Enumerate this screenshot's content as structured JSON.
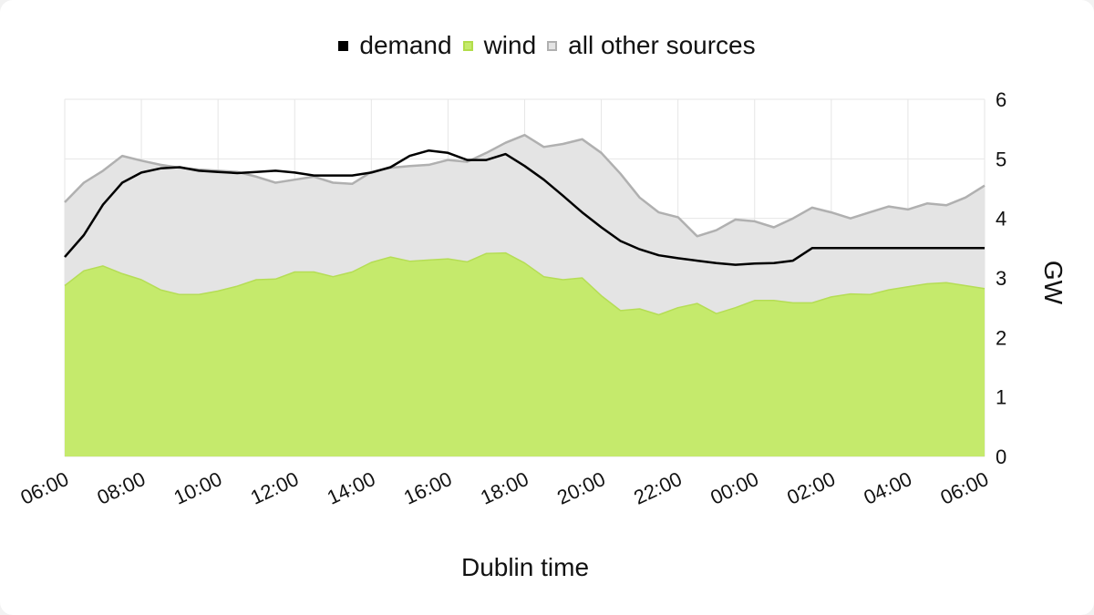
{
  "chart_data": {
    "type": "area",
    "legend_placement": "top",
    "legend": [
      {
        "label": "demand",
        "color": "#000000"
      },
      {
        "label": "wind",
        "color": "#c5ea6c"
      },
      {
        "label": "all other sources",
        "color": "#cccccc"
      }
    ],
    "xlabel": "Dublin time",
    "ylabel": "GW",
    "ylim": [
      0,
      6
    ],
    "y_ticks": [
      "0",
      "1",
      "2",
      "3",
      "4",
      "5",
      "6"
    ],
    "x_ticks": [
      "06:00",
      "08:00",
      "10:00",
      "12:00",
      "14:00",
      "16:00",
      "18:00",
      "20:00",
      "22:00",
      "00:00",
      "02:00",
      "04:00",
      "06:00"
    ],
    "x_unit": "hours from 06:00",
    "xlim": [
      0,
      24
    ],
    "grid": true,
    "colors": {
      "demand_line": "#000000",
      "wind_fill": "#c5ea6c",
      "other_fill": "#e4e4e4",
      "other_line": "#b0b0b0",
      "grid": "#e6e6e6"
    },
    "series": [
      {
        "name": "wind",
        "x": [
          0,
          0.5,
          1,
          1.5,
          2,
          2.5,
          3,
          3.5,
          4,
          4.5,
          5,
          5.5,
          6,
          6.5,
          7,
          7.5,
          8,
          8.5,
          9,
          9.5,
          10,
          10.5,
          11,
          11.5,
          12,
          12.5,
          13,
          13.5,
          14,
          14.5,
          15,
          15.5,
          16,
          16.5,
          17,
          17.5,
          18,
          18.5,
          19,
          19.5,
          20,
          20.5,
          21,
          21.5,
          22,
          22.5,
          23,
          23.5,
          24
        ],
        "values": [
          2.87,
          3.12,
          3.2,
          3.07,
          2.97,
          2.8,
          2.72,
          2.72,
          2.78,
          2.86,
          2.97,
          2.98,
          3.1,
          3.1,
          3.02,
          3.1,
          3.26,
          3.35,
          3.28,
          3.3,
          3.32,
          3.27,
          3.41,
          3.42,
          3.25,
          3.02,
          2.97,
          3.0,
          2.7,
          2.45,
          2.48,
          2.38,
          2.5,
          2.57,
          2.4,
          2.5,
          2.62,
          2.62,
          2.58,
          2.58,
          2.68,
          2.73,
          2.72,
          2.8,
          2.85,
          2.9,
          2.92,
          2.87,
          2.82
        ]
      },
      {
        "name": "all other sources",
        "x": [
          0,
          0.5,
          1,
          1.5,
          2,
          2.5,
          3,
          3.5,
          4,
          4.5,
          5,
          5.5,
          6,
          6.5,
          7,
          7.5,
          8,
          8.5,
          9,
          9.5,
          10,
          10.5,
          11,
          11.5,
          12,
          12.5,
          13,
          13.5,
          14,
          14.5,
          15,
          15.5,
          16,
          16.5,
          17,
          17.5,
          18,
          18.5,
          19,
          19.5,
          20,
          20.5,
          21,
          21.5,
          22,
          22.5,
          23,
          23.5,
          24
        ],
        "values": [
          4.27,
          4.6,
          4.8,
          5.05,
          4.97,
          4.9,
          4.85,
          4.82,
          4.8,
          4.78,
          4.7,
          4.6,
          4.65,
          4.7,
          4.6,
          4.58,
          4.78,
          4.85,
          4.88,
          4.9,
          4.98,
          4.95,
          5.1,
          5.27,
          5.4,
          5.2,
          5.25,
          5.33,
          5.1,
          4.75,
          4.35,
          4.1,
          4.02,
          3.7,
          3.8,
          3.98,
          3.95,
          3.85,
          4.0,
          4.18,
          4.1,
          4.0,
          4.1,
          4.2,
          4.15,
          4.25,
          4.22,
          4.35,
          4.55
        ]
      },
      {
        "name": "demand",
        "x": [
          0,
          0.5,
          1,
          1.5,
          2,
          2.5,
          3,
          3.5,
          4,
          4.5,
          5,
          5.5,
          6,
          6.5,
          7,
          7.5,
          8,
          8.5,
          9,
          9.5,
          10,
          10.5,
          11,
          11.5,
          12,
          12.5,
          13,
          13.5,
          14,
          14.5,
          15,
          15.5,
          16,
          16.5,
          17,
          17.5,
          18,
          18.5,
          19,
          19.5,
          20,
          20.5,
          21,
          21.5,
          22,
          22.5,
          23,
          23.5,
          24
        ],
        "values": [
          3.35,
          3.72,
          4.23,
          4.6,
          4.77,
          4.84,
          4.86,
          4.8,
          4.78,
          4.76,
          4.78,
          4.8,
          4.77,
          4.72,
          4.72,
          4.72,
          4.77,
          4.86,
          5.05,
          5.14,
          5.1,
          4.98,
          4.98,
          5.08,
          4.88,
          4.65,
          4.38,
          4.1,
          3.85,
          3.62,
          3.48,
          3.38,
          3.33,
          3.29,
          3.25,
          3.22,
          3.24,
          3.25,
          3.29,
          3.5,
          3.5,
          3.5,
          3.5,
          3.5,
          3.5,
          3.5,
          3.5,
          3.5,
          3.5
        ]
      }
    ]
  }
}
